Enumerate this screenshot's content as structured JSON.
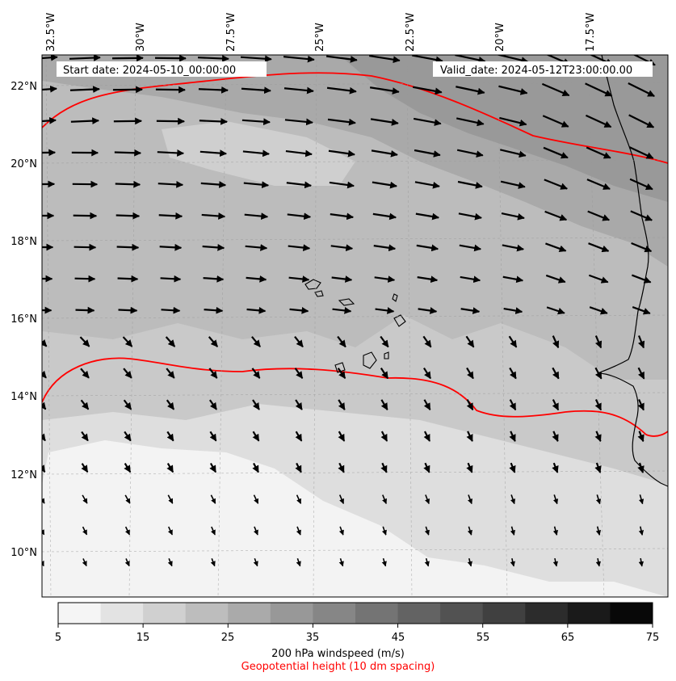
{
  "map": {
    "start_label": "Start date: 2024-05-10_00:00:00",
    "valid_label": "Valid_date: 2024-05-12T23:00:00.00",
    "lon_labels": [
      "32.5°W",
      "30°W",
      "27.5°W",
      "25°W",
      "22.5°W",
      "20°W",
      "17.5°W"
    ],
    "lat_labels": [
      "22°N",
      "20°N",
      "18°N",
      "16°N",
      "14°N",
      "12°N",
      "10°N"
    ],
    "contour_color": "#ff0000",
    "coastline_color": "#000000"
  },
  "colorbar": {
    "ticks": [
      "5",
      "15",
      "25",
      "35",
      "45",
      "55",
      "65",
      "75"
    ],
    "colors": [
      "#f5f5f5",
      "#e3e3e3",
      "#d0d0d0",
      "#bdbdbd",
      "#aaaaaa",
      "#989898",
      "#868686",
      "#747474",
      "#636363",
      "#525252",
      "#404040",
      "#2c2c2c",
      "#1a1a1a",
      "#080808"
    ],
    "label": "200 hPa windspeed (m/s)",
    "sublabel": "Geopotential height (10 dm spacing)",
    "sublabel_color": "#ff0000"
  }
}
